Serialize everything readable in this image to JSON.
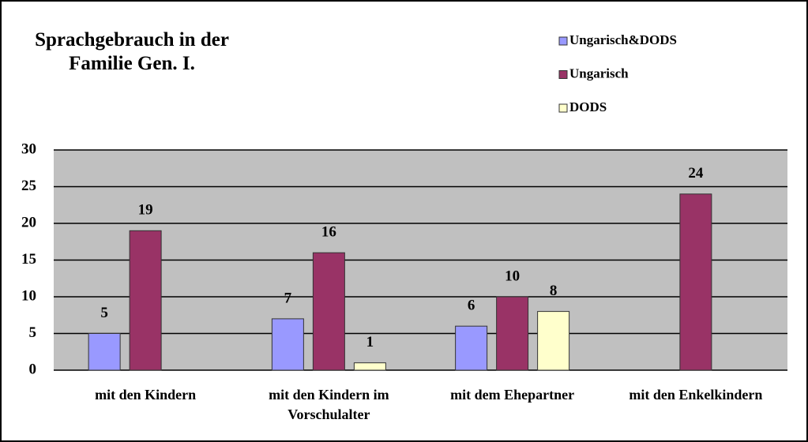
{
  "chart_data": {
    "type": "bar",
    "title": "Sprachgebrauch in der Familie Gen. I.",
    "categories": [
      "mit den Kindern",
      "mit den Kindern im Vorschulalter",
      "mit dem Ehepartner",
      "mit den Enkelkindern"
    ],
    "series": [
      {
        "name": "Ungarisch&DODS",
        "color": "#9999ff",
        "values": [
          5,
          7,
          6,
          null
        ]
      },
      {
        "name": "Ungarisch",
        "color": "#993366",
        "values": [
          19,
          16,
          10,
          24
        ]
      },
      {
        "name": "DODS",
        "color": "#ffffcc",
        "values": [
          null,
          1,
          8,
          null
        ]
      }
    ],
    "ylim": [
      0,
      30
    ],
    "yticks": [
      0,
      5,
      10,
      15,
      20,
      25,
      30
    ],
    "grid": true,
    "legend": "top-right"
  }
}
